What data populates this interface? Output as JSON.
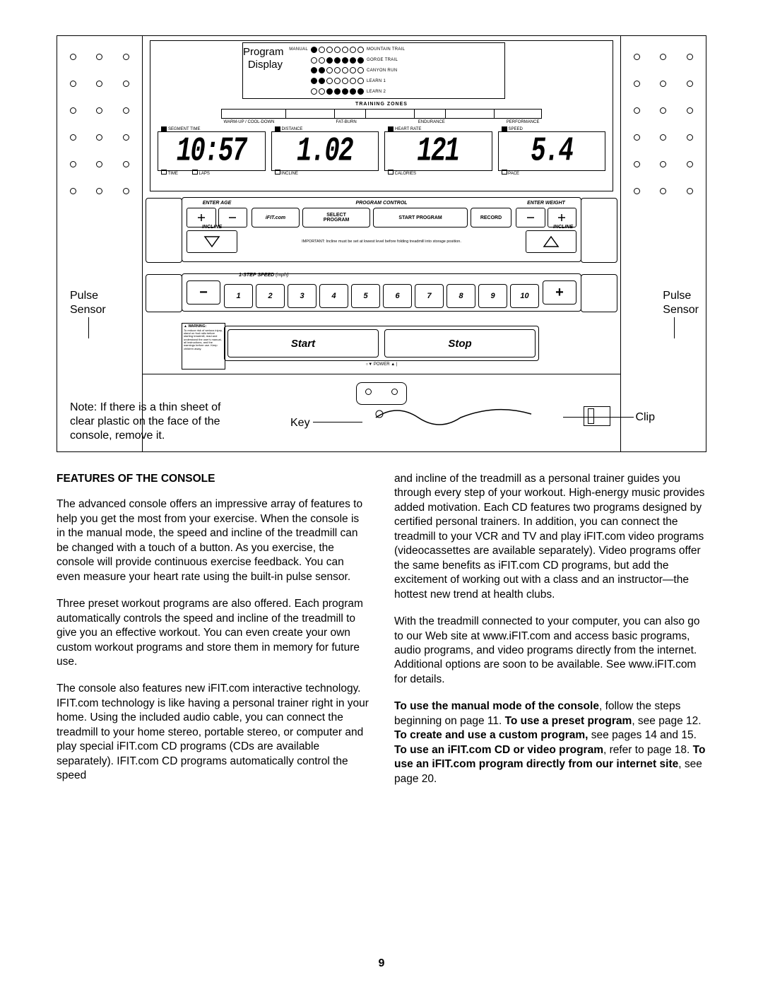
{
  "page_number": "9",
  "diagram": {
    "program_display_label": "Program Display",
    "program_rows": [
      {
        "pattern": [
          0,
          1,
          1,
          1,
          1,
          1,
          1
        ],
        "label": "MANUAL"
      },
      {
        "pattern": [
          1,
          1,
          0,
          0,
          0,
          0,
          0
        ],
        "label": "MOUNTAIN TRAIL"
      },
      {
        "pattern": [
          0,
          0,
          1,
          1,
          1,
          1,
          1
        ],
        "label": "GORGE TRAIL"
      },
      {
        "pattern": [
          0,
          0,
          1,
          1,
          1,
          1,
          1
        ],
        "label": "CANYON RUN"
      },
      {
        "pattern": [
          1,
          1,
          0,
          0,
          0,
          0,
          0
        ],
        "label": "LEARN 1"
      },
      {
        "pattern": [
          1,
          1,
          1,
          0,
          0,
          0,
          0
        ],
        "label": "LEARN 2"
      }
    ],
    "training_zones_label": "TRAINING ZONES",
    "tz_labels": [
      "WARM-UP / COOL-DOWN",
      "FAT-BURN",
      "ENDURANCE",
      "PERFORMANCE"
    ],
    "digit_boxes": [
      {
        "top": "SEGMENT TIME",
        "val": "10:57",
        "bot": [
          "TIME",
          "LAPS"
        ]
      },
      {
        "top": "DISTANCE",
        "val": "1.02",
        "bot": [
          "INCLINE"
        ]
      },
      {
        "top": "HEART RATE",
        "val": "121",
        "bot": [
          "CALORIES"
        ]
      },
      {
        "top": "SPEED",
        "val": "5.4",
        "bot": [
          "PACE"
        ]
      }
    ],
    "enter_age": "ENTER AGE",
    "enter_weight": "ENTER WEIGHT",
    "program_control": "PROGRAM CONTROL",
    "ifit": "iFIT.com",
    "select_program": "SELECT\nPROGRAM",
    "start_program": "START PROGRAM",
    "record": "RECORD",
    "incline": "INCLINE",
    "incline_note": "IMPORTANT: Incline must be set at lowest level before folding treadmill into storage position.",
    "speed_label": "1-STEP SPEED (mph)",
    "speed_nums": [
      "1",
      "2",
      "3",
      "4",
      "5",
      "6",
      "7",
      "8",
      "9",
      "10"
    ],
    "start": "Start",
    "stop": "Stop",
    "warning_title": "WARNING:",
    "warning_text": "To reduce risk of serious injury, stand on foot rails before starting treadmill, read and understand the user's manual, all instructions, and the warnings before use. Keep children away.",
    "power": "▼ POWER ▲",
    "note": "Note: If there is a thin sheet of clear plastic on the face of the console, remove it.",
    "pulse_sensor_l": "Pulse\nSensor",
    "pulse_sensor_r": "Pulse\nSensor",
    "key_label": "Key",
    "clip_label": "Clip"
  },
  "heading": "FEATURES OF THE CONSOLE",
  "col1": [
    "The advanced console offers an impressive array of features to help you get the most from your exercise. When the console is in the manual mode, the speed and incline of the treadmill can be changed with a touch of a button. As you exercise, the console will provide continuous exercise feedback. You can even measure your heart rate using the built-in pulse sensor.",
    "Three preset workout programs are also offered. Each program automatically controls the speed and incline of the treadmill to give you an effective workout. You can even create your own custom workout programs and store them in memory for future use.",
    "The console also features new iFIT.com interactive technology. IFIT.com technology is like having a personal trainer right in your home. Using the included audio cable, you can connect the treadmill to your home stereo, portable stereo, or computer and play special iFIT.com CD programs (CDs are available separately). IFIT.com CD programs automatically control the speed"
  ],
  "col2": [
    "and incline of the treadmill as a personal trainer guides you through every step of your workout. High-energy music provides added motivation. Each CD features two programs designed by certified personal trainers. In addition, you can connect the treadmill to your VCR and TV and play iFIT.com video programs (videocassettes are available separately). Video programs offer the same benefits as iFIT.com CD programs, but add the excitement of working out with a class and an instructor—the hottest new trend at health clubs.",
    "With the treadmill connected to your computer, you can also go to our Web site at www.iFIT.com and access basic programs, audio programs, and video programs directly from the internet. Additional options are soon to be available. See www.iFIT.com for details."
  ],
  "col2_bold": "To use the manual mode of the console, follow the steps beginning on page 11. To use a preset program, see page 12. To create and use a custom program, see pages 14 and 15. To use an iFIT.com CD or video program, refer to page 18. To use an iFIT.com program directly from our internet site, see page 20.",
  "col2_bold_spans": [
    {
      "b": true,
      "t": "To use the manual mode of the console"
    },
    {
      "b": false,
      "t": ", follow the steps beginning on page 11. "
    },
    {
      "b": true,
      "t": "To use a preset program"
    },
    {
      "b": false,
      "t": ", see page 12. "
    },
    {
      "b": true,
      "t": "To create and use a custom program,"
    },
    {
      "b": false,
      "t": " see pages 14 and 15. "
    },
    {
      "b": true,
      "t": "To use an iFIT.com CD or video program"
    },
    {
      "b": false,
      "t": ", refer to page 18. "
    },
    {
      "b": true,
      "t": "To use an iFIT.com program directly from our internet site"
    },
    {
      "b": false,
      "t": ", see page 20."
    }
  ]
}
